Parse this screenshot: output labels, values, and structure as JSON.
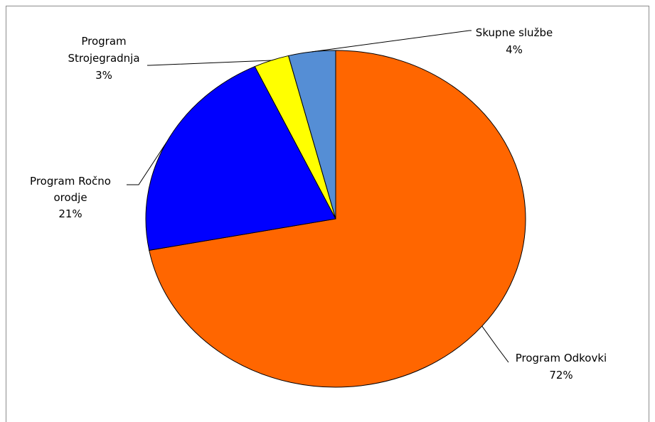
{
  "chart_data": {
    "type": "pie",
    "title": "",
    "legend": "none",
    "slices": [
      {
        "name": "Program Odkovki",
        "label_lines": [
          "Program Odkovki"
        ],
        "percent_label": "72%",
        "value": 72,
        "color": "#ff6600"
      },
      {
        "name": "Program Ročno orodje",
        "label_lines": [
          "Program Ročno",
          "orodje"
        ],
        "percent_label": "21%",
        "value": 21,
        "color": "#0000ff"
      },
      {
        "name": "Program Strojegradnja",
        "label_lines": [
          "Program",
          "Strojegradnja"
        ],
        "percent_label": "3%",
        "value": 3,
        "color": "#ffff00"
      },
      {
        "name": "Skupne službe",
        "label_lines": [
          "Skupne službe"
        ],
        "percent_label": "4%",
        "value": 4,
        "color": "#558ed5"
      }
    ]
  }
}
